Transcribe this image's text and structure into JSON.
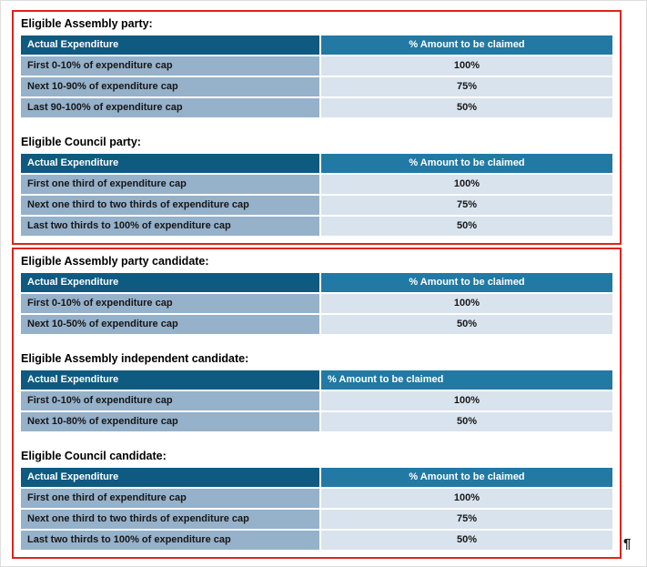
{
  "colors": {
    "annotation_red": "#e0231a",
    "header_left_bg": "#0f5a81",
    "header_right_bg": "#2279a4",
    "row_label_bg": "#96b1ca",
    "row_value_bg": "#d9e3ee",
    "header_text": "#ffffff",
    "body_text": "#161616"
  },
  "formatting_mark": "¶",
  "groups": [
    {
      "name": "party-claims",
      "sections": [
        {
          "title": "Eligible Assembly party:",
          "header": {
            "expenditure": "Actual Expenditure",
            "claim": "% Amount to be claimed"
          },
          "rows": [
            {
              "expenditure": "First 0-10% of expenditure cap",
              "claim": "100%"
            },
            {
              "expenditure": "Next 10-90% of expenditure cap",
              "claim": "75%"
            },
            {
              "expenditure": "Last 90-100% of expenditure cap",
              "claim": "50%"
            }
          ]
        },
        {
          "title": "Eligible Council party:",
          "header": {
            "expenditure": "Actual Expenditure",
            "claim": "% Amount to be claimed"
          },
          "rows": [
            {
              "expenditure": "First one third of expenditure cap",
              "claim": "100%"
            },
            {
              "expenditure": "Next one third to two thirds of expenditure cap",
              "claim": "75%"
            },
            {
              "expenditure": "Last two thirds to 100% of expenditure cap",
              "claim": "50%"
            }
          ]
        }
      ]
    },
    {
      "name": "candidate-claims",
      "sections": [
        {
          "title": "Eligible Assembly party candidate:",
          "header": {
            "expenditure": "Actual Expenditure",
            "claim": "% Amount to be claimed"
          },
          "rows": [
            {
              "expenditure": "First 0-10% of expenditure cap",
              "claim": "100%"
            },
            {
              "expenditure": "Next 10-50% of expenditure cap",
              "claim": "50%"
            }
          ]
        },
        {
          "title": "Eligible Assembly independent candidate:",
          "header": {
            "expenditure": "Actual Expenditure",
            "claim": "% Amount to be claimed"
          },
          "rows": [
            {
              "expenditure": "First 0-10% of expenditure cap",
              "claim": "100%"
            },
            {
              "expenditure": "Next 10-80% of expenditure cap",
              "claim": "50%"
            }
          ]
        },
        {
          "title": "Eligible Council candidate:",
          "header": {
            "expenditure": "Actual Expenditure",
            "claim": "% Amount to be claimed"
          },
          "rows": [
            {
              "expenditure": "First one third of expenditure cap",
              "claim": "100%"
            },
            {
              "expenditure": "Next one third to two thirds of expenditure cap",
              "claim": "75%"
            },
            {
              "expenditure": "Last two thirds to 100% of expenditure cap",
              "claim": "50%"
            }
          ]
        }
      ]
    }
  ]
}
